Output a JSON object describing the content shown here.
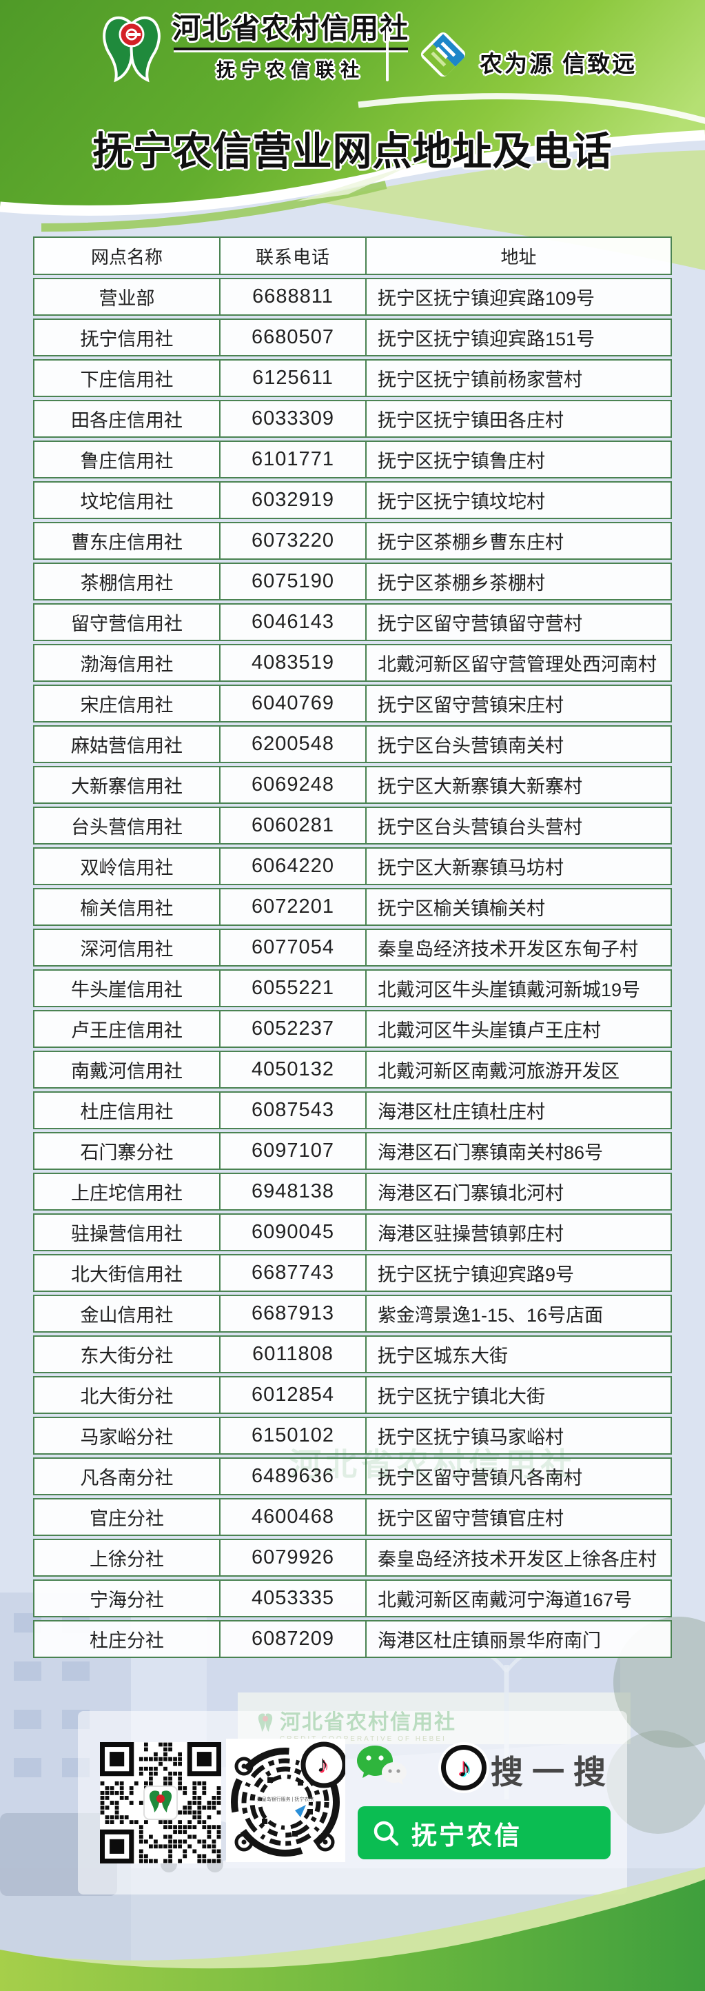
{
  "header": {
    "logo_left": {
      "title": "河北省农村信用社",
      "subtitle": "抚宁农信联社",
      "icon": "hebei-rcc-logo"
    },
    "logo_right": {
      "slogan": "农为源 信致远",
      "icon": "nongxin-diamond-logo"
    },
    "banner_title": "抚宁农信营业网点地址及电话"
  },
  "table": {
    "columns": [
      "网点名称",
      "联系电话",
      "地址"
    ],
    "rows": [
      [
        "营业部",
        "6688811",
        "抚宁区抚宁镇迎宾路109号"
      ],
      [
        "抚宁信用社",
        "6680507",
        "抚宁区抚宁镇迎宾路151号"
      ],
      [
        "下庄信用社",
        "6125611",
        "抚宁区抚宁镇前杨家营村"
      ],
      [
        "田各庄信用社",
        "6033309",
        "抚宁区抚宁镇田各庄村"
      ],
      [
        "鲁庄信用社",
        "6101771",
        "抚宁区抚宁镇鲁庄村"
      ],
      [
        "坟坨信用社",
        "6032919",
        "抚宁区抚宁镇坟坨村"
      ],
      [
        "曹东庄信用社",
        "6073220",
        "抚宁区茶棚乡曹东庄村"
      ],
      [
        "茶棚信用社",
        "6075190",
        "抚宁区茶棚乡茶棚村"
      ],
      [
        "留守营信用社",
        "6046143",
        "抚宁区留守营镇留守营村"
      ],
      [
        "渤海信用社",
        "4083519",
        "北戴河新区留守营管理处西河南村"
      ],
      [
        "宋庄信用社",
        "6040769",
        "抚宁区留守营镇宋庄村"
      ],
      [
        "麻姑营信用社",
        "6200548",
        "抚宁区台头营镇南关村"
      ],
      [
        "大新寨信用社",
        "6069248",
        "抚宁区大新寨镇大新寨村"
      ],
      [
        "台头营信用社",
        "6060281",
        "抚宁区台头营镇台头营村"
      ],
      [
        "双岭信用社",
        "6064220",
        "抚宁区大新寨镇马坊村"
      ],
      [
        "榆关信用社",
        "6072201",
        "抚宁区榆关镇榆关村"
      ],
      [
        "深河信用社",
        "6077054",
        "秦皇岛经济技术开发区东甸子村"
      ],
      [
        "牛头崖信用社",
        "6055221",
        "北戴河区牛头崖镇戴河新城19号"
      ],
      [
        "卢王庄信用社",
        "6052237",
        "北戴河区牛头崖镇卢王庄村"
      ],
      [
        "南戴河信用社",
        "4050132",
        "北戴河新区南戴河旅游开发区"
      ],
      [
        "杜庄信用社",
        "6087543",
        "海港区杜庄镇杜庄村"
      ],
      [
        "石门寨分社",
        "6097107",
        "海港区石门寨镇南关村86号"
      ],
      [
        "上庄坨信用社",
        "6948138",
        "海港区石门寨镇北河村"
      ],
      [
        "驻操营信用社",
        "6090045",
        "海港区驻操营镇郭庄村"
      ],
      [
        "北大街信用社",
        "6687743",
        "抚宁区抚宁镇迎宾路9号"
      ],
      [
        "金山信用社",
        "6687913",
        "紫金湾景逸1-15、16号店面"
      ],
      [
        "东大街分社",
        "6011808",
        "抚宁区城东大街"
      ],
      [
        "北大街分社",
        "6012854",
        "抚宁区抚宁镇北大街"
      ],
      [
        "马家峪分社",
        "6150102",
        "抚宁区抚宁镇马家峪村"
      ],
      [
        "凡各南分社",
        "6489636",
        "抚宁区留守营镇凡各南村"
      ],
      [
        "官庄分社",
        "4600468",
        "抚宁区留守营镇官庄村"
      ],
      [
        "上徐分社",
        "6079926",
        "秦皇岛经济技术开发区上徐各庄村"
      ],
      [
        "宁海分社",
        "4053335",
        "北戴河新区南戴河宁海道167号"
      ],
      [
        "杜庄分社",
        "6087209",
        "海港区杜庄镇丽景华府南门"
      ]
    ]
  },
  "footer": {
    "search_label": "搜一搜",
    "search_value": "抚宁农信",
    "icons": [
      "qr-code",
      "circular-qr-code",
      "wechat-icon",
      "tiktok-icon",
      "search-icon"
    ]
  },
  "watermarks": {
    "building_sign": "河北省农村信用社",
    "building_sign_sub": "CREDIT COOPERATIVE OF HEBEI",
    "table_watermark": "河北省农村信用社"
  },
  "colors": {
    "header_green": "#5aa52d",
    "table_border_green": "#4a8352",
    "page_blue": "#dbe3f1",
    "search_green": "#0bbd52",
    "wechat_green": "#2fb53d",
    "wave_green": "#3f9f3d"
  }
}
